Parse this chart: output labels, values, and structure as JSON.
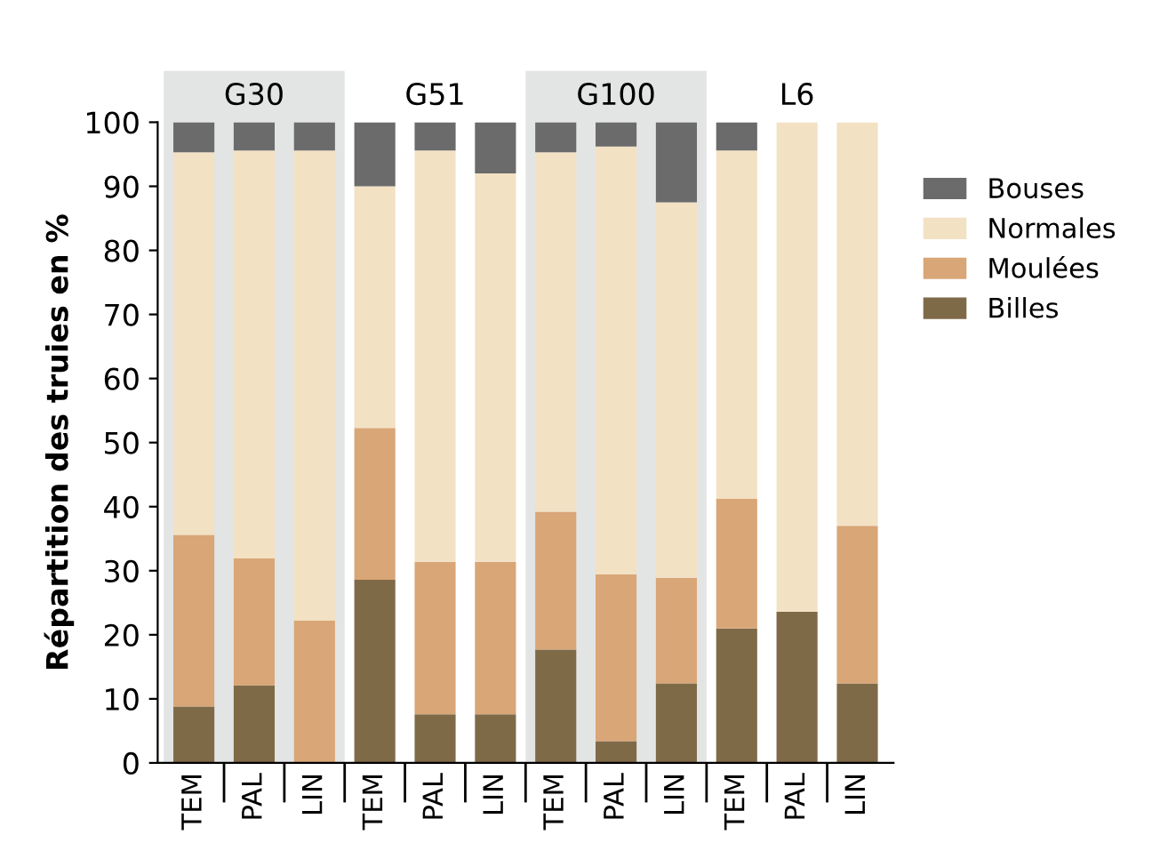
{
  "chart_data": {
    "type": "bar",
    "stacked": true,
    "ylabel": "Répartition des truies en %",
    "categories": [
      "TEM",
      "PAL",
      "LIN",
      "TEM",
      "PAL",
      "LIN",
      "TEM",
      "PAL",
      "LIN",
      "TEM",
      "PAL",
      "LIN"
    ],
    "annotations": [
      "G30",
      "G51",
      "G100",
      "L6"
    ],
    "series": [
      {
        "name": "Billes",
        "color": "#7f6a48",
        "values": [
          8.8,
          12.1,
          0,
          28.6,
          7.6,
          7.6,
          17.7,
          3.4,
          12.4,
          21.0,
          23.6,
          12.4
        ]
      },
      {
        "name": "Moulées",
        "color": "#d9a677",
        "values": [
          26.8,
          19.8,
          22.2,
          23.7,
          23.8,
          23.8,
          21.5,
          26.0,
          16.5,
          20.2,
          0,
          24.6
        ]
      },
      {
        "name": "Normales",
        "color": "#f3e1c4",
        "values": [
          59.7,
          63.7,
          73.4,
          37.7,
          64.2,
          60.6,
          56.1,
          66.8,
          58.6,
          54.4,
          76.4,
          63.0
        ]
      },
      {
        "name": "Bouses",
        "color": "#6b6b6b",
        "values": [
          4.7,
          4.4,
          4.4,
          10.0,
          4.4,
          8.0,
          4.7,
          3.8,
          12.5,
          4.4,
          0,
          0
        ]
      }
    ],
    "ylim": [
      0,
      100
    ],
    "yticks": [
      0,
      10,
      20,
      30,
      40,
      50,
      60,
      70,
      80,
      90,
      100
    ],
    "grid": false,
    "legend": "right"
  }
}
